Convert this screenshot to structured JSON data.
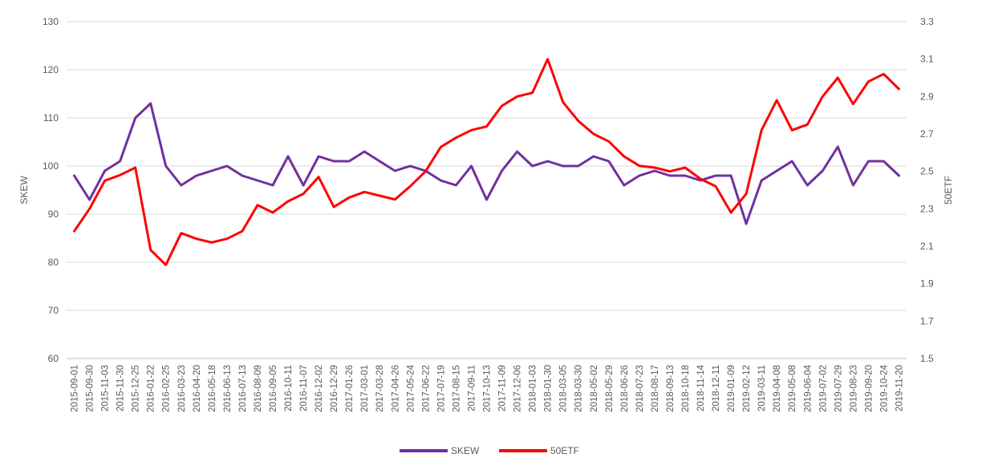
{
  "chart_data": {
    "type": "line",
    "title": "",
    "ylabel": "SKEW",
    "y2label": "50ETF",
    "ylim": [
      60,
      130
    ],
    "y2lim": [
      1.5,
      3.3
    ],
    "yticks": [
      "60",
      "70",
      "80",
      "90",
      "100",
      "110",
      "120",
      "130"
    ],
    "y2ticks": [
      "1.5",
      "1.7",
      "1.9",
      "2.1",
      "2.3",
      "2.5",
      "2.7",
      "2.9",
      "3.1",
      "3.3"
    ],
    "grid": "horizontal",
    "legend_position": "bottom",
    "x_ticks": [
      "2015-09-01",
      "2015-09-30",
      "2015-11-03",
      "2015-11-30",
      "2015-12-25",
      "2016-01-22",
      "2016-02-25",
      "2016-03-23",
      "2016-04-20",
      "2016-05-18",
      "2016-06-13",
      "2016-07-13",
      "2016-08-09",
      "2016-09-05",
      "2016-10-11",
      "2016-11-07",
      "2016-12-02",
      "2016-12-29",
      "2017-01-26",
      "2017-03-01",
      "2017-03-28",
      "2017-04-26",
      "2017-05-24",
      "2017-06-22",
      "2017-07-19",
      "2017-08-15",
      "2017-09-11",
      "2017-10-13",
      "2017-11-09",
      "2017-12-06",
      "2018-01-03",
      "2018-01-30",
      "2018-03-05",
      "2018-03-30",
      "2018-05-02",
      "2018-05-29",
      "2018-06-26",
      "2018-07-23",
      "2018-08-17",
      "2018-09-13",
      "2018-10-18",
      "2018-11-14",
      "2018-12-11",
      "2019-01-09",
      "2019-02-12",
      "2019-03-11",
      "2019-04-08",
      "2019-05-08",
      "2019-06-04",
      "2019-07-02",
      "2019-07-29",
      "2019-08-23",
      "2019-09-20",
      "2019-10-24",
      "2019-11-20"
    ],
    "series": [
      {
        "name": "SKEW",
        "axis": "left",
        "color": "#7030a0",
        "values": [
          98,
          93,
          99,
          101,
          110,
          113,
          100,
          96,
          98,
          99,
          100,
          98,
          97,
          96,
          102,
          96,
          102,
          101,
          101,
          103,
          101,
          99,
          100,
          99,
          97,
          96,
          100,
          93,
          99,
          103,
          100,
          101,
          100,
          100,
          102,
          101,
          96,
          98,
          99,
          98,
          98,
          97,
          98,
          98,
          88,
          97,
          99,
          101,
          96,
          99,
          104,
          96,
          101,
          101,
          98
        ]
      },
      {
        "name": "50ETF",
        "axis": "right",
        "color": "#ff0000",
        "values": [
          2.18,
          2.3,
          2.45,
          2.48,
          2.52,
          2.08,
          2.0,
          2.17,
          2.14,
          2.12,
          2.14,
          2.18,
          2.32,
          2.28,
          2.34,
          2.38,
          2.47,
          2.31,
          2.36,
          2.39,
          2.37,
          2.35,
          2.42,
          2.5,
          2.63,
          2.68,
          2.72,
          2.74,
          2.85,
          2.9,
          2.92,
          3.1,
          2.87,
          2.77,
          2.7,
          2.66,
          2.58,
          2.53,
          2.52,
          2.5,
          2.52,
          2.46,
          2.42,
          2.28,
          2.38,
          2.72,
          2.88,
          2.72,
          2.75,
          2.9,
          3.0,
          2.86,
          2.98,
          3.02,
          2.94
        ]
      }
    ]
  }
}
